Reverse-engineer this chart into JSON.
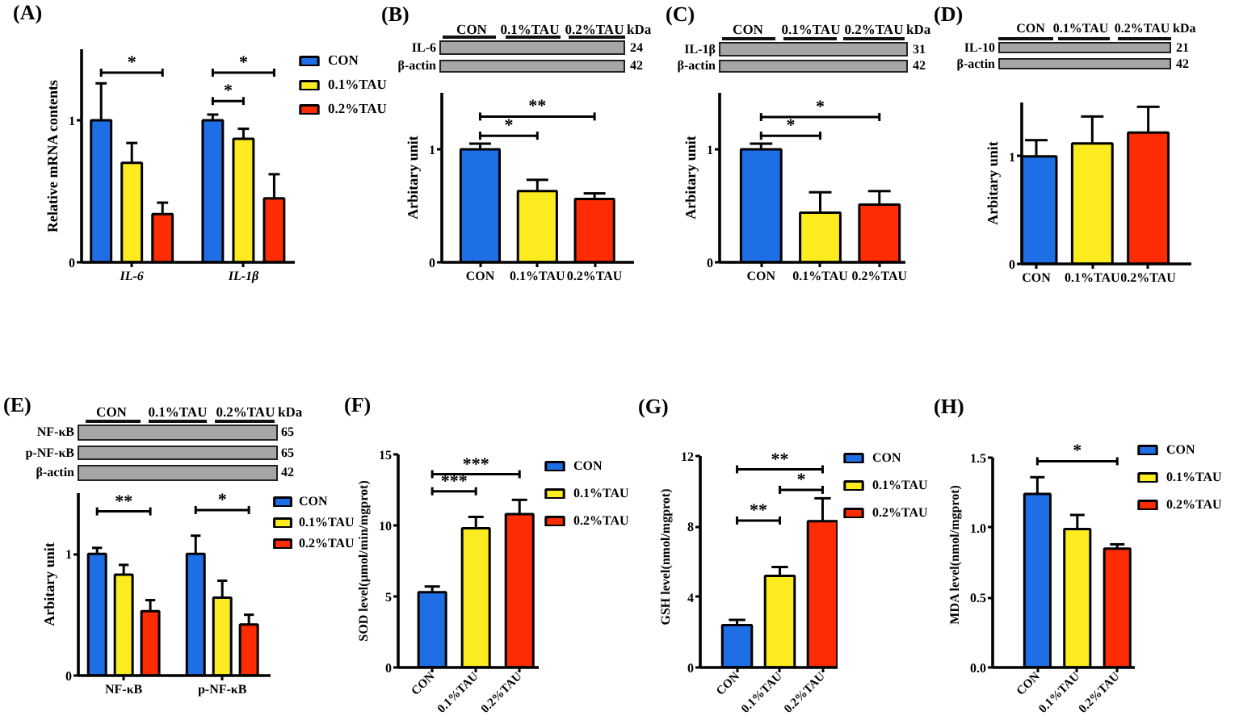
{
  "chart_data": [
    {
      "type": "bar",
      "title": "(A)",
      "ylabel": "Relative mRNA contents",
      "categories": [
        "IL-6",
        "IL-1β"
      ],
      "series": [
        {
          "name": "CON",
          "color": "#1e6fe6",
          "values": [
            1.0,
            1.0
          ],
          "errors": [
            [
              1.0,
              1.26
            ],
            [
              1.0,
              1.04
            ]
          ]
        },
        {
          "name": "0.1%TAU",
          "color": "#fcec1f",
          "values": [
            0.7,
            0.87
          ],
          "errors": [
            [
              0.7,
              0.84
            ],
            [
              0.87,
              0.94
            ]
          ]
        },
        {
          "name": "0.2%TAU",
          "color": "#fe2b03",
          "values": [
            0.34,
            0.45
          ],
          "errors": [
            [
              0.34,
              0.42
            ],
            [
              0.45,
              0.62
            ]
          ]
        }
      ],
      "ylim": [
        0,
        1.5
      ],
      "yticks": [
        0,
        1
      ],
      "legend": "right",
      "annotations": [
        "*",
        "*",
        "*"
      ]
    },
    {
      "type": "bar",
      "title": "(B)",
      "ylabel": "Arbitary unit",
      "categories": [
        "CON",
        "0.1%TAU",
        "0.2%TAU"
      ],
      "values": [
        1.0,
        0.63,
        0.56
      ],
      "colors": [
        "#1e6fe6",
        "#fcec1f",
        "#fe2b03"
      ],
      "errors": [
        [
          1.0,
          1.05
        ],
        [
          0.63,
          0.73
        ],
        [
          0.56,
          0.61
        ]
      ],
      "ylim": [
        0,
        1.5
      ],
      "yticks": [
        0,
        1
      ],
      "annotations": [
        "CON",
        "0.1%TAU",
        "0.2%TAU",
        "kDa",
        "IL-6",
        "24",
        "β-actin",
        "42",
        "**",
        "*"
      ]
    },
    {
      "type": "bar",
      "title": "(C)",
      "ylabel": "Arbitary unit",
      "categories": [
        "CON",
        "0.1%TAU",
        "0.2%TAU"
      ],
      "values": [
        1.0,
        0.44,
        0.51
      ],
      "colors": [
        "#1e6fe6",
        "#fcec1f",
        "#fe2b03"
      ],
      "errors": [
        [
          1.0,
          1.05
        ],
        [
          0.44,
          0.62
        ],
        [
          0.51,
          0.63
        ]
      ],
      "ylim": [
        0,
        1.5
      ],
      "yticks": [
        0,
        1
      ],
      "annotations": [
        "CON",
        "0.1%TAU",
        "0.2%TAU",
        "kDa",
        "IL-1β",
        "31",
        "β-actin",
        "42",
        "*",
        "*"
      ]
    },
    {
      "type": "bar",
      "title": "(D)",
      "ylabel": "Arbitary unit",
      "categories": [
        "CON",
        "0.1%TAU",
        "0.2%TAU"
      ],
      "values": [
        1.0,
        1.12,
        1.22
      ],
      "colors": [
        "#1e6fe6",
        "#fcec1f",
        "#fe2b03"
      ],
      "errors": [
        [
          1.0,
          1.15
        ],
        [
          1.12,
          1.37
        ],
        [
          1.22,
          1.46
        ]
      ],
      "ylim": [
        0,
        1.5
      ],
      "yticks": [
        0,
        1
      ],
      "annotations": [
        "CON",
        "0.1%TAU",
        "0.2%TAU",
        "kDa",
        "IL-10",
        "21",
        "β-actin",
        "42"
      ]
    },
    {
      "type": "bar",
      "title": "(E)",
      "ylabel": "Arbitary unit",
      "categories": [
        "NF-κB",
        "p-NF-κB"
      ],
      "series": [
        {
          "name": "CON",
          "color": "#1e6fe6",
          "values": [
            1.0,
            1.0
          ],
          "errors": [
            [
              1.0,
              1.05
            ],
            [
              1.0,
              1.15
            ]
          ]
        },
        {
          "name": "0.1%TAU",
          "color": "#fcec1f",
          "values": [
            0.83,
            0.64
          ],
          "errors": [
            [
              0.83,
              0.91
            ],
            [
              0.64,
              0.78
            ]
          ]
        },
        {
          "name": "0.2%TAU",
          "color": "#fe2b03",
          "values": [
            0.53,
            0.42
          ],
          "errors": [
            [
              0.53,
              0.62
            ],
            [
              0.42,
              0.5
            ]
          ]
        }
      ],
      "ylim": [
        0,
        1.5
      ],
      "yticks": [
        0,
        1
      ],
      "legend": "right",
      "annotations": [
        "CON",
        "0.1%TAU",
        "0.2%TAU",
        "kDa",
        "NF-κB",
        "65",
        "p-NF-κB",
        "65",
        "β-actin",
        "42",
        "**",
        "*"
      ]
    },
    {
      "type": "bar",
      "title": "(F)",
      "ylabel": "SOD level(μmol/min/mgprot)",
      "categories": [
        "CON",
        "0.1%TAU",
        "0.2%TAU"
      ],
      "series": [
        {
          "name": "CON",
          "color": "#1e6fe6",
          "values": [
            5.3,
            null,
            null
          ],
          "errors": [
            [
              5.3,
              5.7
            ],
            null,
            null
          ]
        },
        {
          "name": "0.1%TAU",
          "color": "#fcec1f",
          "values": [
            null,
            9.8,
            null
          ],
          "errors": [
            null,
            [
              9.8,
              10.6
            ],
            null
          ]
        },
        {
          "name": "0.2%TAU",
          "color": "#fe2b03",
          "values": [
            null,
            null,
            10.8
          ],
          "errors": [
            null,
            null,
            [
              10.8,
              11.8
            ]
          ]
        }
      ],
      "ylim": [
        0,
        15
      ],
      "yticks": [
        0,
        5,
        10,
        15
      ],
      "legend": "right",
      "annotations": [
        "***",
        "***"
      ]
    },
    {
      "type": "bar",
      "title": "(G)",
      "ylabel": "GSH level(nmol/mgprot)",
      "categories": [
        "CON",
        "0.1%TAU",
        "0.2%TAU"
      ],
      "series": [
        {
          "name": "CON",
          "color": "#1e6fe6",
          "values": [
            2.4,
            null,
            null
          ],
          "errors": [
            [
              2.4,
              2.7
            ],
            null,
            null
          ]
        },
        {
          "name": "0.1%TAU",
          "color": "#fcec1f",
          "values": [
            null,
            5.2,
            null
          ],
          "errors": [
            null,
            [
              5.2,
              5.7
            ],
            null
          ]
        },
        {
          "name": "0.2%TAU",
          "color": "#fe2b03",
          "values": [
            null,
            null,
            8.3
          ],
          "errors": [
            null,
            null,
            [
              8.3,
              9.6
            ]
          ]
        }
      ],
      "ylim": [
        0,
        12
      ],
      "yticks": [
        0,
        4,
        8,
        12
      ],
      "legend": "right",
      "annotations": [
        "**",
        "*",
        "**"
      ]
    },
    {
      "type": "bar",
      "title": "(H)",
      "ylabel": "MDA level(nmol/mgprot)",
      "categories": [
        "CON",
        "0.1%TAU",
        "0.2%TAU"
      ],
      "series": [
        {
          "name": "CON",
          "color": "#1e6fe6",
          "values": [
            1.24,
            null,
            null
          ],
          "errors": [
            [
              1.24,
              1.36
            ],
            null,
            null
          ]
        },
        {
          "name": "0.1%TAU",
          "color": "#fcec1f",
          "values": [
            null,
            0.99,
            null
          ],
          "errors": [
            null,
            [
              0.99,
              1.09
            ],
            null
          ]
        },
        {
          "name": "0.2%TAU",
          "color": "#fe2b03",
          "values": [
            null,
            null,
            0.85
          ],
          "errors": [
            null,
            null,
            [
              0.85,
              0.88
            ]
          ]
        }
      ],
      "ylim": [
        0,
        1.5
      ],
      "yticks": [
        {
          "value": 0,
          "label": "0.0"
        },
        {
          "value": 0.5,
          "label": "0.5"
        },
        {
          "value": 1,
          "label": "1.0"
        },
        {
          "value": 1.5,
          "label": "1.5"
        }
      ],
      "legend": "right",
      "annotations": [
        "*"
      ]
    }
  ]
}
